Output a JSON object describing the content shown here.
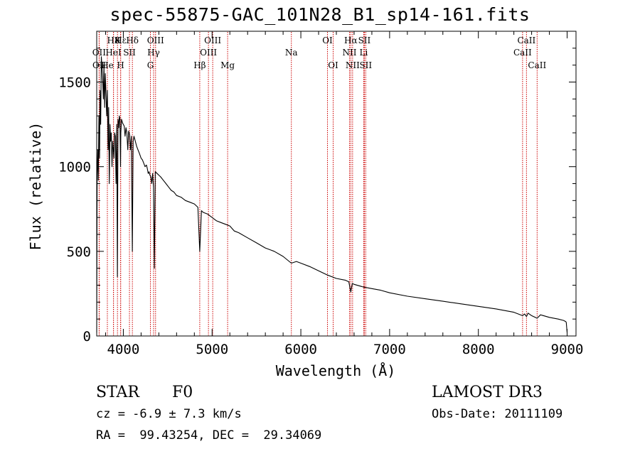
{
  "title": "spec-55875-GAC_101N28_B1_sp14-161.fits",
  "info": {
    "class_label": "STAR",
    "subclass": "F0",
    "survey": "LAMOST DR3",
    "cz": "cz = -6.9 ± 7.3 km/s",
    "obs_date": "Obs-Date: 20111109",
    "coords": "RA =  99.43254, DEC =  29.34069"
  },
  "colors": {
    "line": "#000000",
    "marker": "#cc0000",
    "background": "#ffffff"
  },
  "chart_data": {
    "type": "line",
    "title": "spec-55875-GAC_101N28_B1_sp14-161.fits",
    "xlabel": "Wavelength (Å)",
    "ylabel": "Flux (relative)",
    "xlim": [
      3700,
      9100
    ],
    "ylim": [
      0,
      1800
    ],
    "x_ticks": [
      4000,
      5000,
      6000,
      7000,
      8000,
      9000
    ],
    "x_minor_step": 200,
    "y_ticks": [
      0,
      500,
      1000,
      1500
    ],
    "y_minor_step": 100,
    "series": [
      {
        "name": "spectrum",
        "x": [
          3700,
          3705,
          3712,
          3718,
          3725,
          3732,
          3738,
          3745,
          3752,
          3760,
          3768,
          3775,
          3782,
          3790,
          3797,
          3805,
          3812,
          3820,
          3828,
          3835,
          3842,
          3850,
          3857,
          3864,
          3872,
          3880,
          3888,
          3895,
          3902,
          3910,
          3918,
          3926,
          3933,
          3936,
          3940,
          3948,
          3955,
          3962,
          3968,
          3972,
          3980,
          3990,
          4000,
          4010,
          4020,
          4030,
          4040,
          4050,
          4060,
          4070,
          4080,
          4090,
          4101,
          4110,
          4120,
          4135,
          4150,
          4165,
          4180,
          4200,
          4215,
          4230,
          4245,
          4260,
          4270,
          4280,
          4290,
          4300,
          4310,
          4320,
          4330,
          4340,
          4350,
          4360,
          4380,
          4400,
          4420,
          4450,
          4480,
          4510,
          4540,
          4570,
          4600,
          4650,
          4700,
          4750,
          4800,
          4840,
          4861,
          4880,
          4900,
          4950,
          5000,
          5050,
          5100,
          5150,
          5200,
          5250,
          5300,
          5400,
          5500,
          5600,
          5700,
          5800,
          5893,
          5950,
          6000,
          6100,
          6200,
          6300,
          6400,
          6500,
          6540,
          6563,
          6580,
          6600,
          6700,
          6800,
          6900,
          7000,
          7200,
          7400,
          7600,
          7800,
          8000,
          8200,
          8400,
          8498,
          8520,
          8542,
          8560,
          8600,
          8662,
          8700,
          8800,
          8900,
          8960,
          8985,
          8990,
          9000
        ],
        "values": [
          20,
          950,
          1100,
          920,
          1300,
          1050,
          1450,
          1250,
          1650,
          1580,
          1500,
          1400,
          1600,
          1350,
          1550,
          1420,
          1300,
          1450,
          1100,
          1350,
          900,
          1250,
          1150,
          1200,
          1000,
          1150,
          1100,
          1050,
          1200,
          1180,
          900,
          1250,
          350,
          800,
          1280,
          1230,
          1300,
          1280,
          1000,
          1200,
          1280,
          1260,
          1250,
          1240,
          1180,
          1230,
          1200,
          1100,
          1210,
          1190,
          1100,
          1180,
          500,
          1150,
          1180,
          1150,
          1120,
          1100,
          1080,
          1050,
          1040,
          1020,
          1000,
          1010,
          990,
          960,
          970,
          950,
          940,
          900,
          960,
          880,
          400,
          970,
          960,
          950,
          940,
          920,
          900,
          880,
          860,
          850,
          830,
          820,
          800,
          790,
          780,
          760,
          500,
          740,
          730,
          720,
          700,
          680,
          670,
          660,
          650,
          620,
          610,
          580,
          550,
          520,
          500,
          470,
          430,
          440,
          430,
          410,
          385,
          360,
          340,
          330,
          320,
          260,
          310,
          305,
          290,
          280,
          270,
          255,
          235,
          220,
          205,
          190,
          175,
          160,
          140,
          120,
          130,
          115,
          135,
          120,
          105,
          125,
          110,
          100,
          92,
          85,
          80,
          20
        ]
      }
    ],
    "line_markers": [
      {
        "label": "Hε",
        "x": 3970,
        "row": 1
      },
      {
        "label": "H8",
        "x": 3889,
        "row": 1
      },
      {
        "label": "OII",
        "x": 3727,
        "row": 2
      },
      {
        "label": "OII",
        "x": 3729,
        "row": 3
      },
      {
        "label": "He",
        "x": 3820,
        "row": 3
      },
      {
        "label": "K",
        "x": 3934,
        "row": 1
      },
      {
        "label": "H",
        "x": 3969,
        "row": 3
      },
      {
        "label": "HeI",
        "x": 3889,
        "row": 2
      },
      {
        "label": "SII",
        "x": 4069,
        "row": 2
      },
      {
        "label": "Hδ",
        "x": 4102,
        "row": 1
      },
      {
        "label": "OIII",
        "x": 4363,
        "row": 1
      },
      {
        "label": "Hγ",
        "x": 4341,
        "row": 2
      },
      {
        "label": "G",
        "x": 4305,
        "row": 3
      },
      {
        "label": "Hβ",
        "x": 4861,
        "row": 3
      },
      {
        "label": "OIII",
        "x": 5007,
        "row": 1
      },
      {
        "label": "OIII",
        "x": 4959,
        "row": 2
      },
      {
        "label": "Mg",
        "x": 5175,
        "row": 3
      },
      {
        "label": "Na",
        "x": 5893,
        "row": 2
      },
      {
        "label": "OI",
        "x": 6300,
        "row": 1
      },
      {
        "label": "OI",
        "x": 6364,
        "row": 3
      },
      {
        "label": "Hα",
        "x": 6563,
        "row": 1
      },
      {
        "label": "NII",
        "x": 6548,
        "row": 2
      },
      {
        "label": "NII",
        "x": 6583,
        "row": 3
      },
      {
        "label": "SII",
        "x": 6716,
        "row": 1
      },
      {
        "label": "Li",
        "x": 6708,
        "row": 2
      },
      {
        "label": "SII",
        "x": 6731,
        "row": 3
      },
      {
        "label": "CaII",
        "x": 8542,
        "row": 1
      },
      {
        "label": "CaII",
        "x": 8498,
        "row": 2
      },
      {
        "label": "CaII",
        "x": 8662,
        "row": 3
      }
    ]
  }
}
